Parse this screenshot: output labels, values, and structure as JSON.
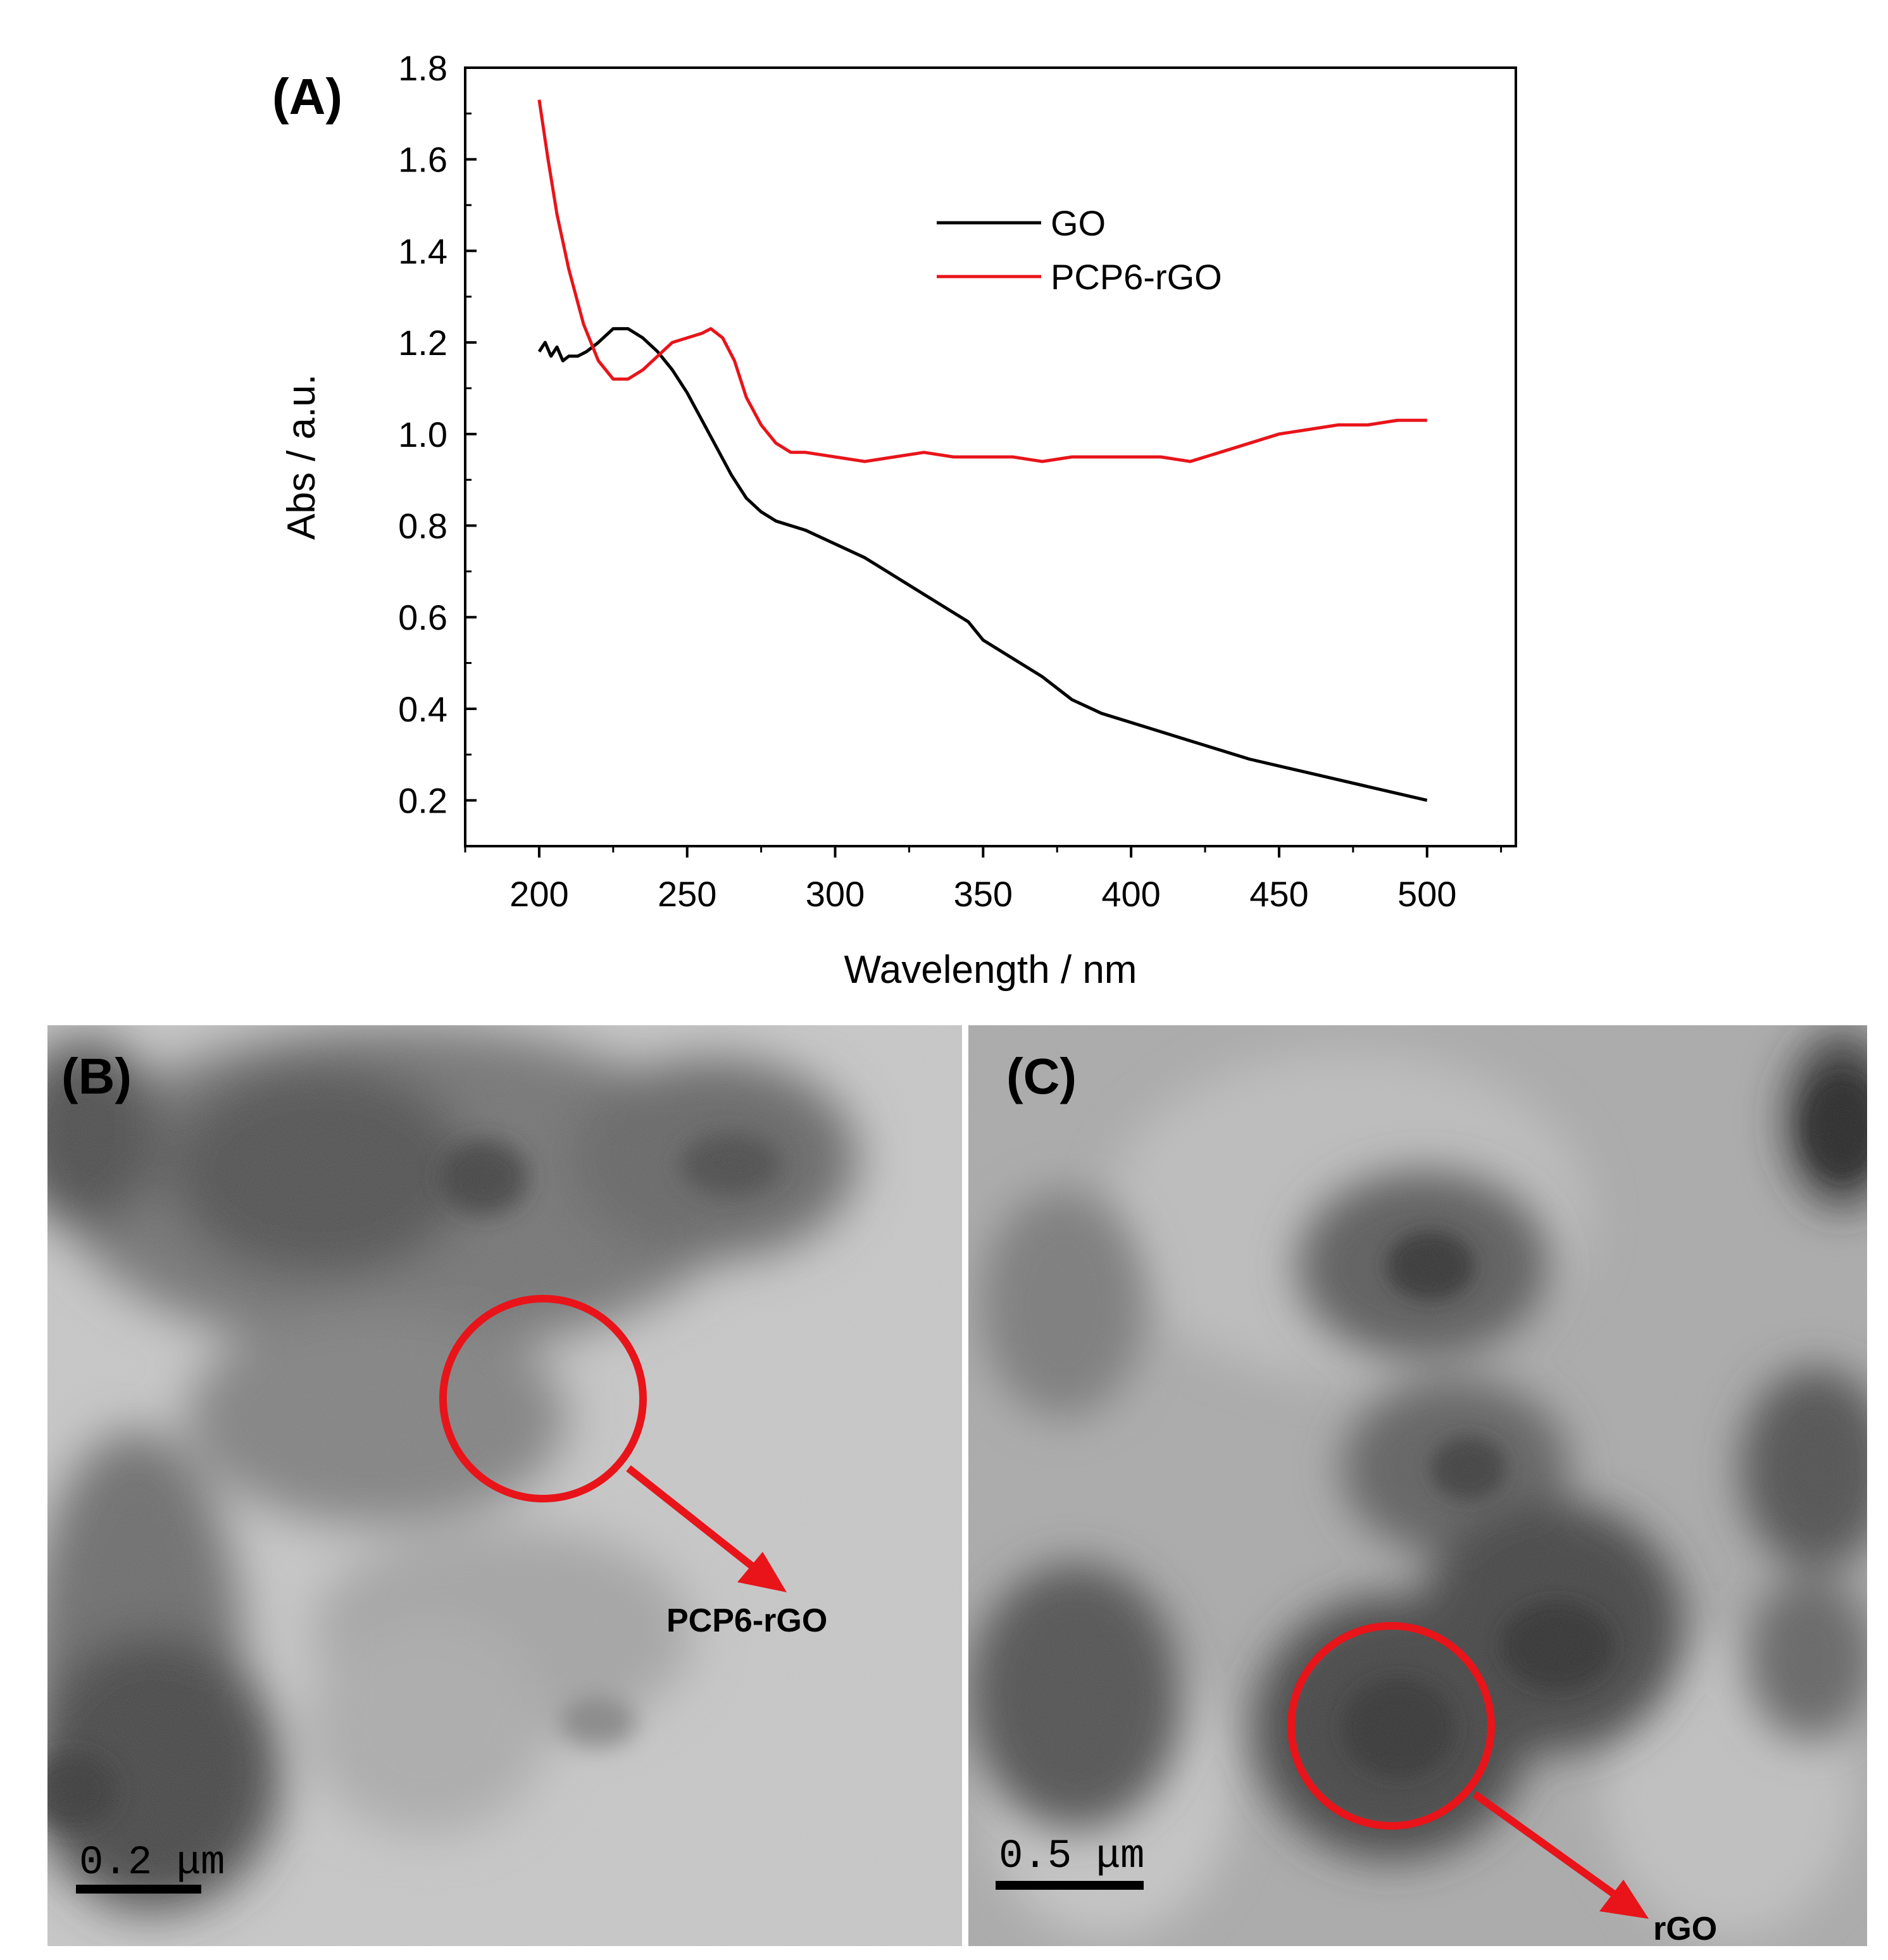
{
  "panels": {
    "a": {
      "label": "(A)"
    },
    "b": {
      "label": "(B)",
      "scale_bar": "0.2 μm",
      "annotation": "PCP6-rGO"
    },
    "c": {
      "label": "(C)",
      "scale_bar": "0.5 μm",
      "annotation": "rGO"
    }
  },
  "colors": {
    "go": "#000000",
    "pcp6_rgo": "#e8141a",
    "annotation": "#e8141a"
  },
  "chart_data": {
    "type": "line",
    "xlabel": "Wavelength / nm",
    "ylabel": "Abs / a.u.",
    "xlim": [
      175,
      530
    ],
    "ylim": [
      0.1,
      1.8
    ],
    "xticks": [
      200,
      250,
      300,
      350,
      400,
      450,
      500
    ],
    "yticks": [
      0.2,
      0.4,
      0.6,
      0.8,
      1.0,
      1.2,
      1.4,
      1.6,
      1.8
    ],
    "xtick_labels": [
      "200",
      "250",
      "300",
      "350",
      "400",
      "450",
      "500"
    ],
    "ytick_labels": [
      "0.2",
      "0.4",
      "0.6",
      "0.8",
      "1.0",
      "1.2",
      "1.4",
      "1.6",
      "1.8"
    ],
    "legend_position": "upper-right",
    "grid": false,
    "series": [
      {
        "name": "GO",
        "color": "#000000",
        "x": [
          200,
          202,
          204,
          206,
          208,
          210,
          213,
          216,
          220,
          225,
          230,
          235,
          240,
          245,
          250,
          255,
          260,
          265,
          270,
          275,
          280,
          290,
          300,
          310,
          320,
          330,
          340,
          345,
          350,
          355,
          360,
          370,
          380,
          390,
          400,
          420,
          440,
          460,
          480,
          500
        ],
        "y": [
          1.18,
          1.2,
          1.17,
          1.19,
          1.16,
          1.17,
          1.17,
          1.18,
          1.2,
          1.23,
          1.23,
          1.21,
          1.18,
          1.14,
          1.09,
          1.03,
          0.97,
          0.91,
          0.86,
          0.83,
          0.81,
          0.79,
          0.76,
          0.73,
          0.69,
          0.65,
          0.61,
          0.59,
          0.55,
          0.53,
          0.51,
          0.47,
          0.42,
          0.39,
          0.37,
          0.33,
          0.29,
          0.26,
          0.23,
          0.2
        ]
      },
      {
        "name": "PCP6-rGO",
        "color": "#e8141a",
        "x": [
          200,
          203,
          206,
          210,
          215,
          220,
          225,
          230,
          235,
          240,
          245,
          250,
          255,
          258,
          262,
          266,
          270,
          275,
          280,
          285,
          290,
          300,
          310,
          320,
          330,
          340,
          350,
          360,
          370,
          380,
          390,
          400,
          410,
          420,
          430,
          440,
          450,
          460,
          470,
          480,
          490,
          500
        ],
        "y": [
          1.73,
          1.6,
          1.48,
          1.36,
          1.24,
          1.16,
          1.12,
          1.12,
          1.14,
          1.17,
          1.2,
          1.21,
          1.22,
          1.23,
          1.21,
          1.16,
          1.08,
          1.02,
          0.98,
          0.96,
          0.96,
          0.95,
          0.94,
          0.95,
          0.96,
          0.95,
          0.95,
          0.95,
          0.94,
          0.95,
          0.95,
          0.95,
          0.95,
          0.94,
          0.96,
          0.98,
          1.0,
          1.01,
          1.02,
          1.02,
          1.03,
          1.03
        ]
      }
    ]
  }
}
